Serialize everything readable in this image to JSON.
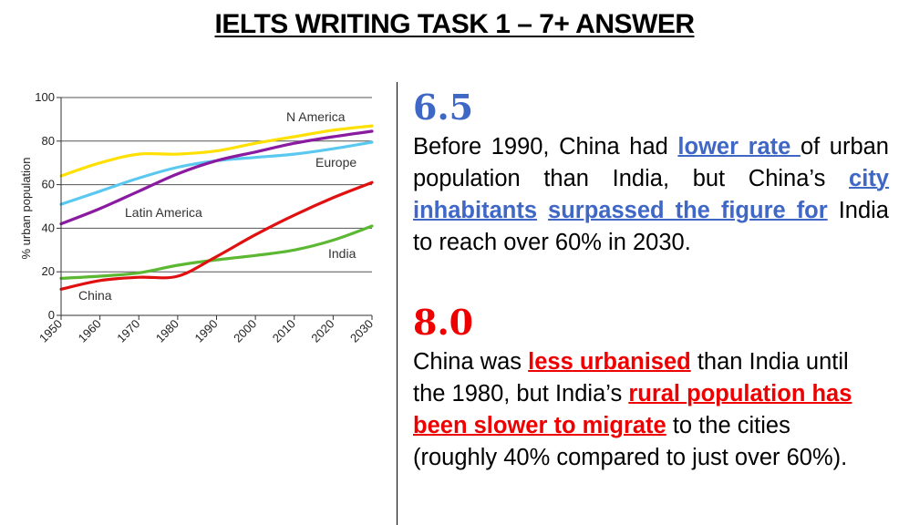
{
  "header": {
    "title": "IELTS WRITING TASK 1 – 7+ ANSWER"
  },
  "chart_data": {
    "type": "line",
    "ylabel": "% urban population",
    "xlabel": "",
    "ylim": [
      0,
      100
    ],
    "xlim": [
      1950,
      2030
    ],
    "x_ticks": [
      "1950",
      "1960",
      "1970",
      "1980",
      "1990",
      "2000",
      "2010",
      "2020",
      "2030"
    ],
    "y_ticks": [
      "0",
      "20",
      "40",
      "60",
      "80",
      "100"
    ],
    "grid": "horizontal",
    "series": [
      {
        "name": "N America",
        "color": "#ffe000",
        "x": [
          1950,
          1960,
          1970,
          1980,
          1990,
          2000,
          2010,
          2020,
          2030
        ],
        "y": [
          64,
          70,
          74,
          74,
          75.5,
          79,
          82,
          85,
          87
        ]
      },
      {
        "name": "Europe",
        "color": "#5bc8f0",
        "x": [
          1950,
          1960,
          1970,
          1980,
          1990,
          2000,
          2010,
          2020,
          2030
        ],
        "y": [
          51,
          57,
          63,
          68,
          71,
          72.5,
          74,
          76.5,
          79.5
        ]
      },
      {
        "name": "Latin America",
        "color": "#8a1aa0",
        "x": [
          1950,
          1960,
          1970,
          1980,
          1990,
          2000,
          2010,
          2020,
          2030
        ],
        "y": [
          42,
          49,
          57,
          65,
          71,
          75,
          79,
          82,
          84.5
        ]
      },
      {
        "name": "India",
        "color": "#5cb832",
        "x": [
          1950,
          1960,
          1970,
          1980,
          1990,
          2000,
          2010,
          2020,
          2030
        ],
        "y": [
          17,
          18,
          19.5,
          23,
          25.5,
          27.5,
          30,
          34.5,
          41
        ]
      },
      {
        "name": "China",
        "color": "#e01010",
        "x": [
          1950,
          1960,
          1970,
          1980,
          1990,
          2000,
          2010,
          2020,
          2030
        ],
        "y": [
          12,
          16,
          17.5,
          18,
          27,
          37,
          46,
          54,
          61
        ]
      }
    ]
  },
  "sections": [
    {
      "score": "6.5",
      "parts": [
        {
          "t": "Before 1990, China had "
        },
        {
          "t": "lower rate ",
          "h": "blue"
        },
        {
          "t": "of urban population than India, but China’s "
        },
        {
          "t": "city inhabitants",
          "h": "blue"
        },
        {
          "t": " "
        },
        {
          "t": "surpassed the figure for",
          "h": "blue"
        },
        {
          "t": " India to reach over 60% in 2030."
        }
      ]
    },
    {
      "score": "8.0",
      "parts": [
        {
          "t": "China was "
        },
        {
          "t": "less urbanised",
          "h": "red"
        },
        {
          "t": " than India until the 1980, but India’s "
        },
        {
          "t": "rural population has been slower to migrate",
          "h": "red"
        },
        {
          "t": " to the cities (roughly 40% compared to just over 60%)."
        }
      ]
    }
  ]
}
